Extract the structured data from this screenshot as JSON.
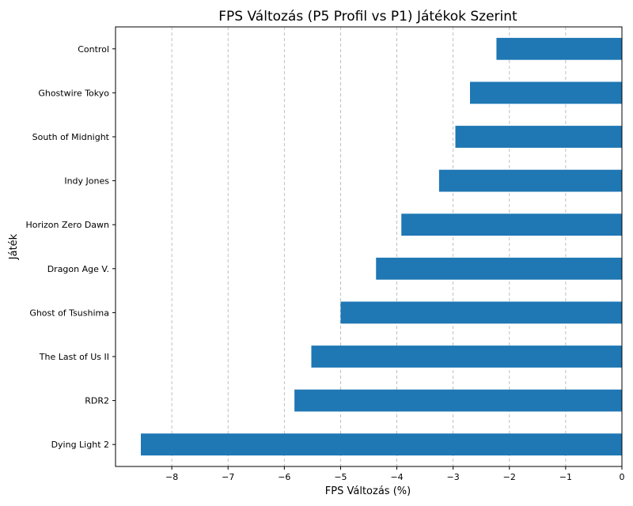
{
  "chart_data": {
    "type": "bar",
    "orientation": "horizontal",
    "title": "FPS Változás (P5 Profil vs P1) Játékok Szerint",
    "xlabel": "FPS Változás (%)",
    "ylabel": "Játék",
    "categories": [
      "Control",
      "Ghostwire Tokyo",
      "South of Midnight",
      "Indy Jones",
      "Horizon Zero Dawn",
      "Dragon Age V.",
      "Ghost of Tsushima",
      "The Last of Us II",
      "RDR2",
      "Dying Light 2"
    ],
    "values": [
      -2.23,
      -2.7,
      -2.96,
      -3.25,
      -3.92,
      -4.37,
      -5.0,
      -5.52,
      -5.82,
      -8.55
    ],
    "xlim": [
      -9.0,
      0
    ],
    "xticks": [
      -8,
      -7,
      -6,
      -5,
      -4,
      -3,
      -2,
      -1,
      0
    ],
    "xtick_labels": [
      "−8",
      "−7",
      "−6",
      "−5",
      "−4",
      "−3",
      "−2",
      "−1",
      "0"
    ],
    "grid": "x-axis dashed",
    "bar_color": "#1f77b4"
  }
}
